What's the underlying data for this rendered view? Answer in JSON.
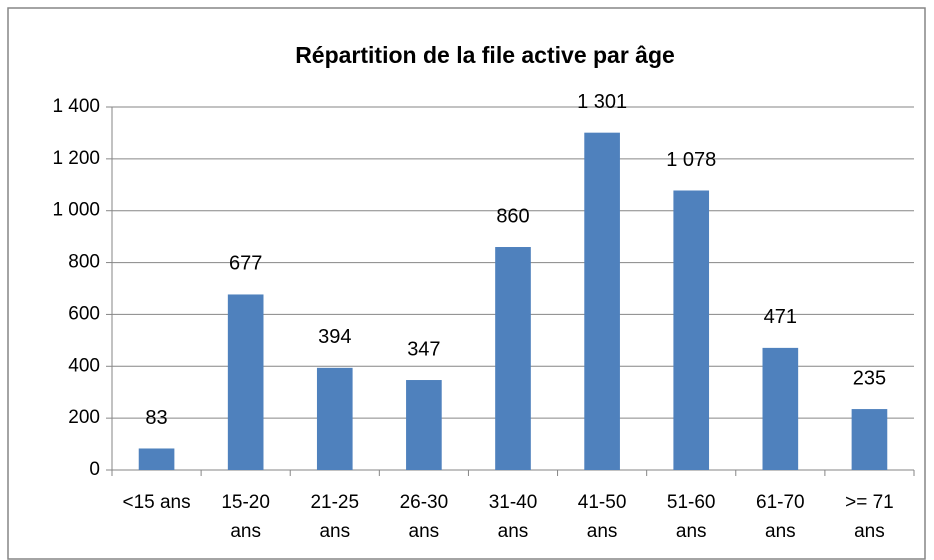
{
  "chart_data": {
    "type": "bar",
    "title": "Répartition de la file active par âge",
    "categories": [
      "<15 ans",
      "15-20 ans",
      "21-25 ans",
      "26-30 ans",
      "31-40 ans",
      "41-50 ans",
      "51-60 ans",
      "61-70 ans",
      ">= 71 ans"
    ],
    "values": [
      83,
      677,
      394,
      347,
      860,
      1301,
      1078,
      471,
      235
    ],
    "value_labels": [
      "83",
      "677",
      "394",
      "347",
      "860",
      "1 301",
      "1 078",
      "471",
      "235"
    ],
    "color": "#4f81bd",
    "ylim": [
      0,
      1400
    ],
    "yticks": [
      0,
      200,
      400,
      600,
      800,
      {
        "value": 1000,
        "label": "1 000"
      },
      {
        "value": 1200,
        "label": "1 200"
      },
      {
        "value": 1400,
        "label": "1 400"
      }
    ],
    "grid": true
  }
}
